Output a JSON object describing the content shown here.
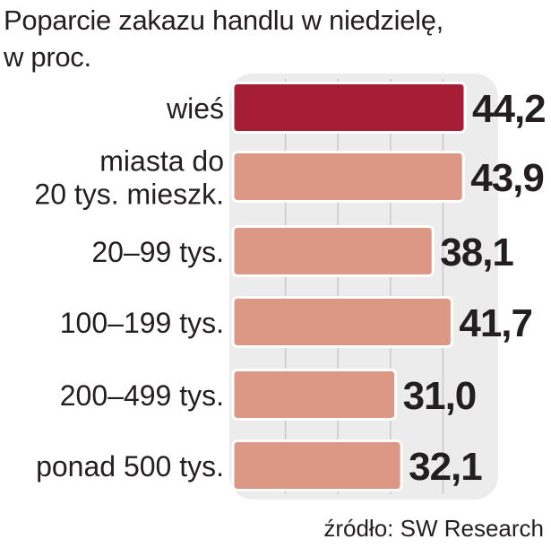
{
  "title": {
    "line1": "Poparcie zakazu handlu w niedzielę,",
    "line2": "w proc."
  },
  "source": "źródło: SW Research",
  "colors": {
    "highlight": "#a51e35",
    "bar": "#dd9785",
    "bar_border": "#ffffff",
    "panel": "#ececec",
    "grid": "#c9c9c9",
    "text": "#231f20"
  },
  "chart_data": {
    "type": "bar",
    "orientation": "horizontal",
    "categories": [
      [
        "wieś"
      ],
      [
        "miasta do",
        "20 tys. mieszk."
      ],
      [
        "20–99 tys."
      ],
      [
        "100–199 tys."
      ],
      [
        "200–499 tys."
      ],
      [
        "ponad 500 tys."
      ]
    ],
    "values": [
      44.2,
      43.9,
      38.1,
      41.7,
      31.0,
      32.1
    ],
    "value_labels": [
      "44,2",
      "43,9",
      "38,1",
      "41,7",
      "31,0",
      "32,1"
    ],
    "highlight_index": 0,
    "xlim": [
      0,
      50
    ],
    "grid": true
  }
}
